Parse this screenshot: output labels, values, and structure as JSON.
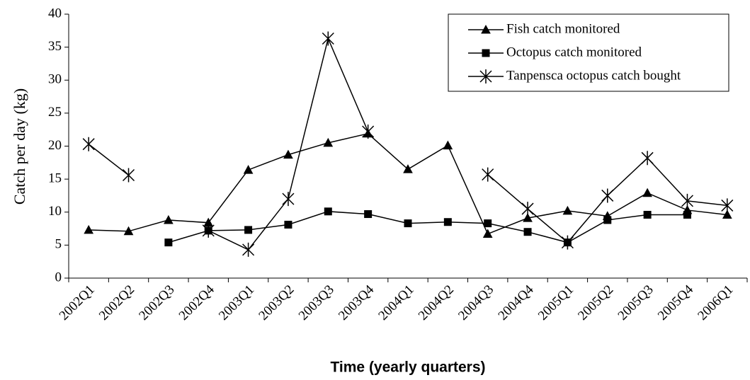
{
  "chart_data": {
    "type": "line",
    "x_label": "Time (yearly quarters)",
    "y_label": "Catch per day (kg)",
    "categories": [
      "2002Q1",
      "2002Q2",
      "2002Q3",
      "2002Q4",
      "2003Q1",
      "2003Q2",
      "2003Q3",
      "2003Q4",
      "2004Q1",
      "2004Q2",
      "2004Q3",
      "2004Q4",
      "2005Q1",
      "2005Q2",
      "2005Q3",
      "2005Q4",
      "2006Q1"
    ],
    "series": [
      {
        "name": "Fish catch monitored",
        "color": "#000000",
        "marker": "triangle",
        "values": [
          7.3,
          7.1,
          8.8,
          8.4,
          16.4,
          18.7,
          20.5,
          21.9,
          16.5,
          20.1,
          6.7,
          9.1,
          10.2,
          9.4,
          12.9,
          10.3,
          9.6
        ]
      },
      {
        "name": "Octopus catch monitored",
        "color": "#000000",
        "marker": "square",
        "values": [
          null,
          null,
          5.4,
          7.2,
          7.3,
          8.1,
          10.1,
          9.7,
          8.3,
          8.5,
          8.3,
          7.0,
          5.4,
          8.8,
          9.6,
          9.6,
          null
        ]
      },
      {
        "name": "Tanpensca octopus catch bought",
        "color": "#000000",
        "marker": "star",
        "values": [
          20.3,
          15.6,
          null,
          7.2,
          4.3,
          12.0,
          36.3,
          22.2,
          null,
          null,
          15.7,
          10.5,
          5.4,
          12.5,
          18.2,
          11.7,
          11.0
        ]
      }
    ],
    "ylim": [
      0,
      40
    ],
    "yticks": [
      0,
      5,
      10,
      15,
      20,
      25,
      30,
      35,
      40
    ],
    "legend": "upper right"
  }
}
